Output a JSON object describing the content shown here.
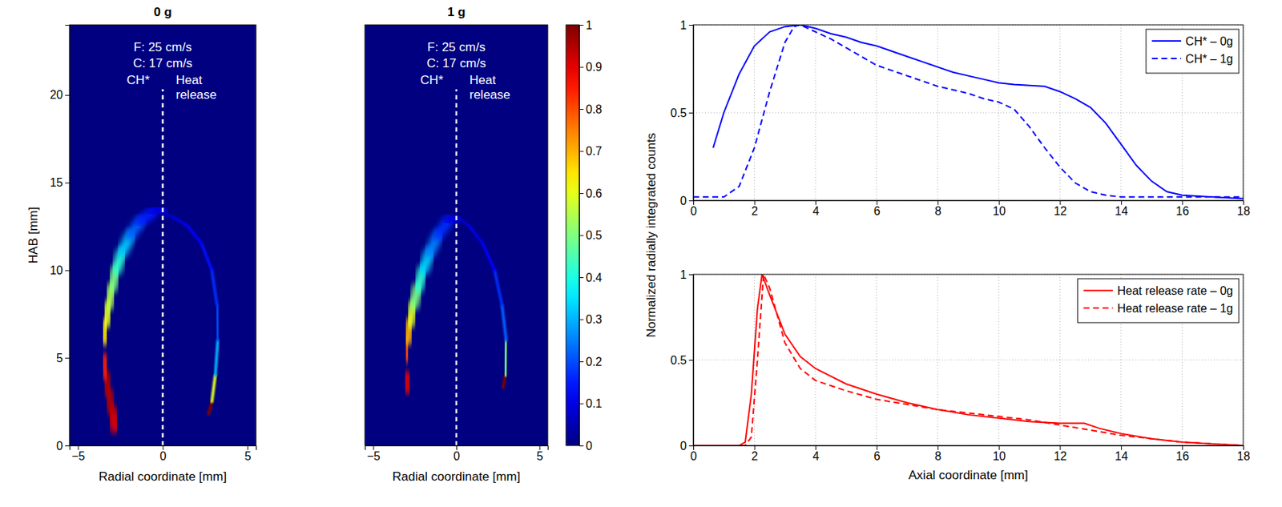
{
  "chart_data": [
    {
      "type": "heatmap",
      "title": "0 g",
      "annotations": [
        "F: 25 cm/s",
        "C: 17 cm/s"
      ],
      "xlabel": "Radial coordinate [mm]",
      "ylabel": "HAB [mm]",
      "xlim": [
        -5.5,
        5.5
      ],
      "ylim": [
        0,
        24
      ],
      "xticks": [
        {
          "value": -5,
          "label": "−5"
        },
        0,
        5
      ],
      "yticks": [
        0,
        5,
        10,
        15,
        20
      ],
      "series": [
        {
          "name": "CH*",
          "x": [
            -2.8,
            -3.0,
            -3.2,
            -3.35,
            -3.45,
            -3.45,
            -3.35,
            -3.2,
            -3.0,
            -2.75,
            -2.4,
            -1.9,
            -1.3,
            -0.6,
            0
          ],
          "y": [
            1,
            2,
            3,
            4,
            5,
            6,
            7,
            8,
            9,
            10,
            11,
            12,
            12.8,
            13.3,
            13.5
          ],
          "values": [
            0.9,
            0.95,
            0.95,
            0.85,
            0.75,
            0.65,
            0.6,
            0.55,
            0.5,
            0.42,
            0.32,
            0.22,
            0.15,
            0.1,
            0.08
          ]
        },
        {
          "name": "Heat release",
          "x": [
            2.7,
            2.9,
            3.1,
            3.25,
            3.2,
            2.9,
            2.3,
            1.5,
            0.7,
            0.1
          ],
          "y": [
            1.8,
            2.5,
            4,
            6,
            8,
            10,
            11.5,
            12.5,
            13,
            13.2
          ],
          "values": [
            1,
            0.6,
            0.3,
            0.2,
            0.17,
            0.14,
            0.12,
            0.1,
            0.08,
            0.06
          ]
        }
      ]
    },
    {
      "type": "heatmap",
      "title": "1 g",
      "annotations": [
        "F: 25 cm/s",
        "C: 17 cm/s"
      ],
      "xlabel": "Radial coordinate [mm]",
      "xlim": [
        -5.5,
        5.5
      ],
      "ylim": [
        0,
        24
      ],
      "xticks": [
        {
          "value": -5,
          "label": "−5"
        },
        0,
        5
      ],
      "tick_labels": "x",
      "series": [
        {
          "name": "CH*",
          "x": [
            -2.9,
            -3.0,
            -3.0,
            -2.95,
            -2.8,
            -2.6,
            -2.3,
            -2.0,
            -1.6,
            -1.1,
            -0.5,
            0
          ],
          "y": [
            3.2,
            4,
            5,
            6,
            7,
            8,
            9,
            10,
            11,
            12,
            12.8,
            13
          ],
          "values": [
            0.9,
            0.95,
            0.8,
            0.7,
            0.6,
            0.5,
            0.42,
            0.33,
            0.25,
            0.17,
            0.1,
            0.07
          ]
        },
        {
          "name": "Heat release",
          "x": [
            2.8,
            2.95,
            3.0,
            2.75,
            2.3,
            1.6,
            0.8,
            0.1
          ],
          "y": [
            3.3,
            4,
            6,
            8,
            10,
            11.5,
            12.5,
            13
          ],
          "values": [
            1,
            0.5,
            0.22,
            0.17,
            0.13,
            0.1,
            0.08,
            0.06
          ]
        }
      ],
      "colorbar": {
        "range": [
          0,
          1
        ],
        "ticks": [
          0,
          0.1,
          0.2,
          0.3,
          0.4,
          0.5,
          0.6,
          0.7,
          0.8,
          0.9,
          1
        ]
      }
    },
    {
      "type": "line",
      "ylabel": "Normalized radially integrated counts",
      "xlim": [
        0,
        18
      ],
      "ylim": [
        0,
        1
      ],
      "xticks": [
        0,
        2,
        4,
        6,
        8,
        10,
        12,
        14,
        16,
        18
      ],
      "yticks": [
        0,
        0.5,
        1
      ],
      "grid": true,
      "legend": "upper right",
      "series": [
        {
          "name": "CH* – 0g",
          "color": "#0000ff",
          "line_style": "solid",
          "x": [
            0.65,
            1,
            1.5,
            2,
            2.5,
            3,
            3.5,
            4,
            4.5,
            5,
            5.5,
            6,
            6.5,
            7,
            7.5,
            8,
            8.5,
            9,
            9.5,
            10,
            10.5,
            11,
            11.5,
            12,
            12.5,
            13,
            13.5,
            14,
            14.5,
            15,
            15.5,
            16,
            17,
            18
          ],
          "values": [
            0.3,
            0.5,
            0.72,
            0.88,
            0.96,
            0.99,
            1.0,
            0.98,
            0.95,
            0.93,
            0.9,
            0.88,
            0.85,
            0.82,
            0.79,
            0.76,
            0.73,
            0.71,
            0.69,
            0.67,
            0.66,
            0.655,
            0.65,
            0.62,
            0.58,
            0.53,
            0.44,
            0.32,
            0.2,
            0.11,
            0.05,
            0.03,
            0.02,
            0.01
          ]
        },
        {
          "name": "CH* – 1g",
          "color": "#0000ff",
          "line_style": "dashed",
          "x": [
            0,
            1,
            1.5,
            2,
            2.5,
            3,
            3.3,
            3.5,
            4,
            4.5,
            5,
            5.5,
            6,
            6.5,
            7,
            7.5,
            8,
            8.5,
            9,
            9.5,
            10,
            10.5,
            11,
            11.5,
            12,
            12.5,
            13,
            13.5,
            14,
            16,
            18
          ],
          "values": [
            0.02,
            0.02,
            0.08,
            0.3,
            0.62,
            0.9,
            0.99,
            1.0,
            0.96,
            0.92,
            0.87,
            0.82,
            0.77,
            0.74,
            0.71,
            0.68,
            0.65,
            0.63,
            0.61,
            0.58,
            0.56,
            0.52,
            0.42,
            0.3,
            0.19,
            0.1,
            0.05,
            0.03,
            0.02,
            0.02,
            0.02
          ]
        }
      ]
    },
    {
      "type": "line",
      "xlabel": "Axial coordinate [mm]",
      "xlim": [
        0,
        18
      ],
      "ylim": [
        0,
        1
      ],
      "xticks": [
        0,
        2,
        4,
        6,
        8,
        10,
        12,
        14,
        16,
        18
      ],
      "yticks": [
        0,
        0.5,
        1
      ],
      "grid": true,
      "legend": "upper right",
      "series": [
        {
          "name": "Heat release rate – 0g",
          "color": "#ff0000",
          "line_style": "solid",
          "x": [
            0,
            1.5,
            1.7,
            1.9,
            2.1,
            2.25,
            2.5,
            3,
            3.5,
            4,
            5,
            6,
            7,
            8,
            9,
            10,
            11,
            12,
            12.8,
            13.3,
            14,
            15,
            16,
            17,
            18
          ],
          "values": [
            0,
            0,
            0.02,
            0.3,
            0.8,
            1.0,
            0.88,
            0.65,
            0.52,
            0.45,
            0.36,
            0.3,
            0.25,
            0.21,
            0.18,
            0.16,
            0.14,
            0.13,
            0.13,
            0.1,
            0.07,
            0.04,
            0.02,
            0.01,
            0
          ]
        },
        {
          "name": "Heat release rate – 1g",
          "color": "#ff0000",
          "line_style": "dashed",
          "x": [
            0,
            1.7,
            1.9,
            2.1,
            2.3,
            2.5,
            3,
            3.5,
            4,
            5,
            6,
            7,
            8,
            9,
            10,
            11,
            12,
            13,
            14,
            15,
            16,
            17,
            18
          ],
          "values": [
            0,
            0,
            0.05,
            0.5,
            1.0,
            0.92,
            0.6,
            0.45,
            0.38,
            0.32,
            0.27,
            0.24,
            0.21,
            0.19,
            0.17,
            0.15,
            0.12,
            0.09,
            0.06,
            0.04,
            0.02,
            0.01,
            0
          ]
        }
      ]
    }
  ]
}
